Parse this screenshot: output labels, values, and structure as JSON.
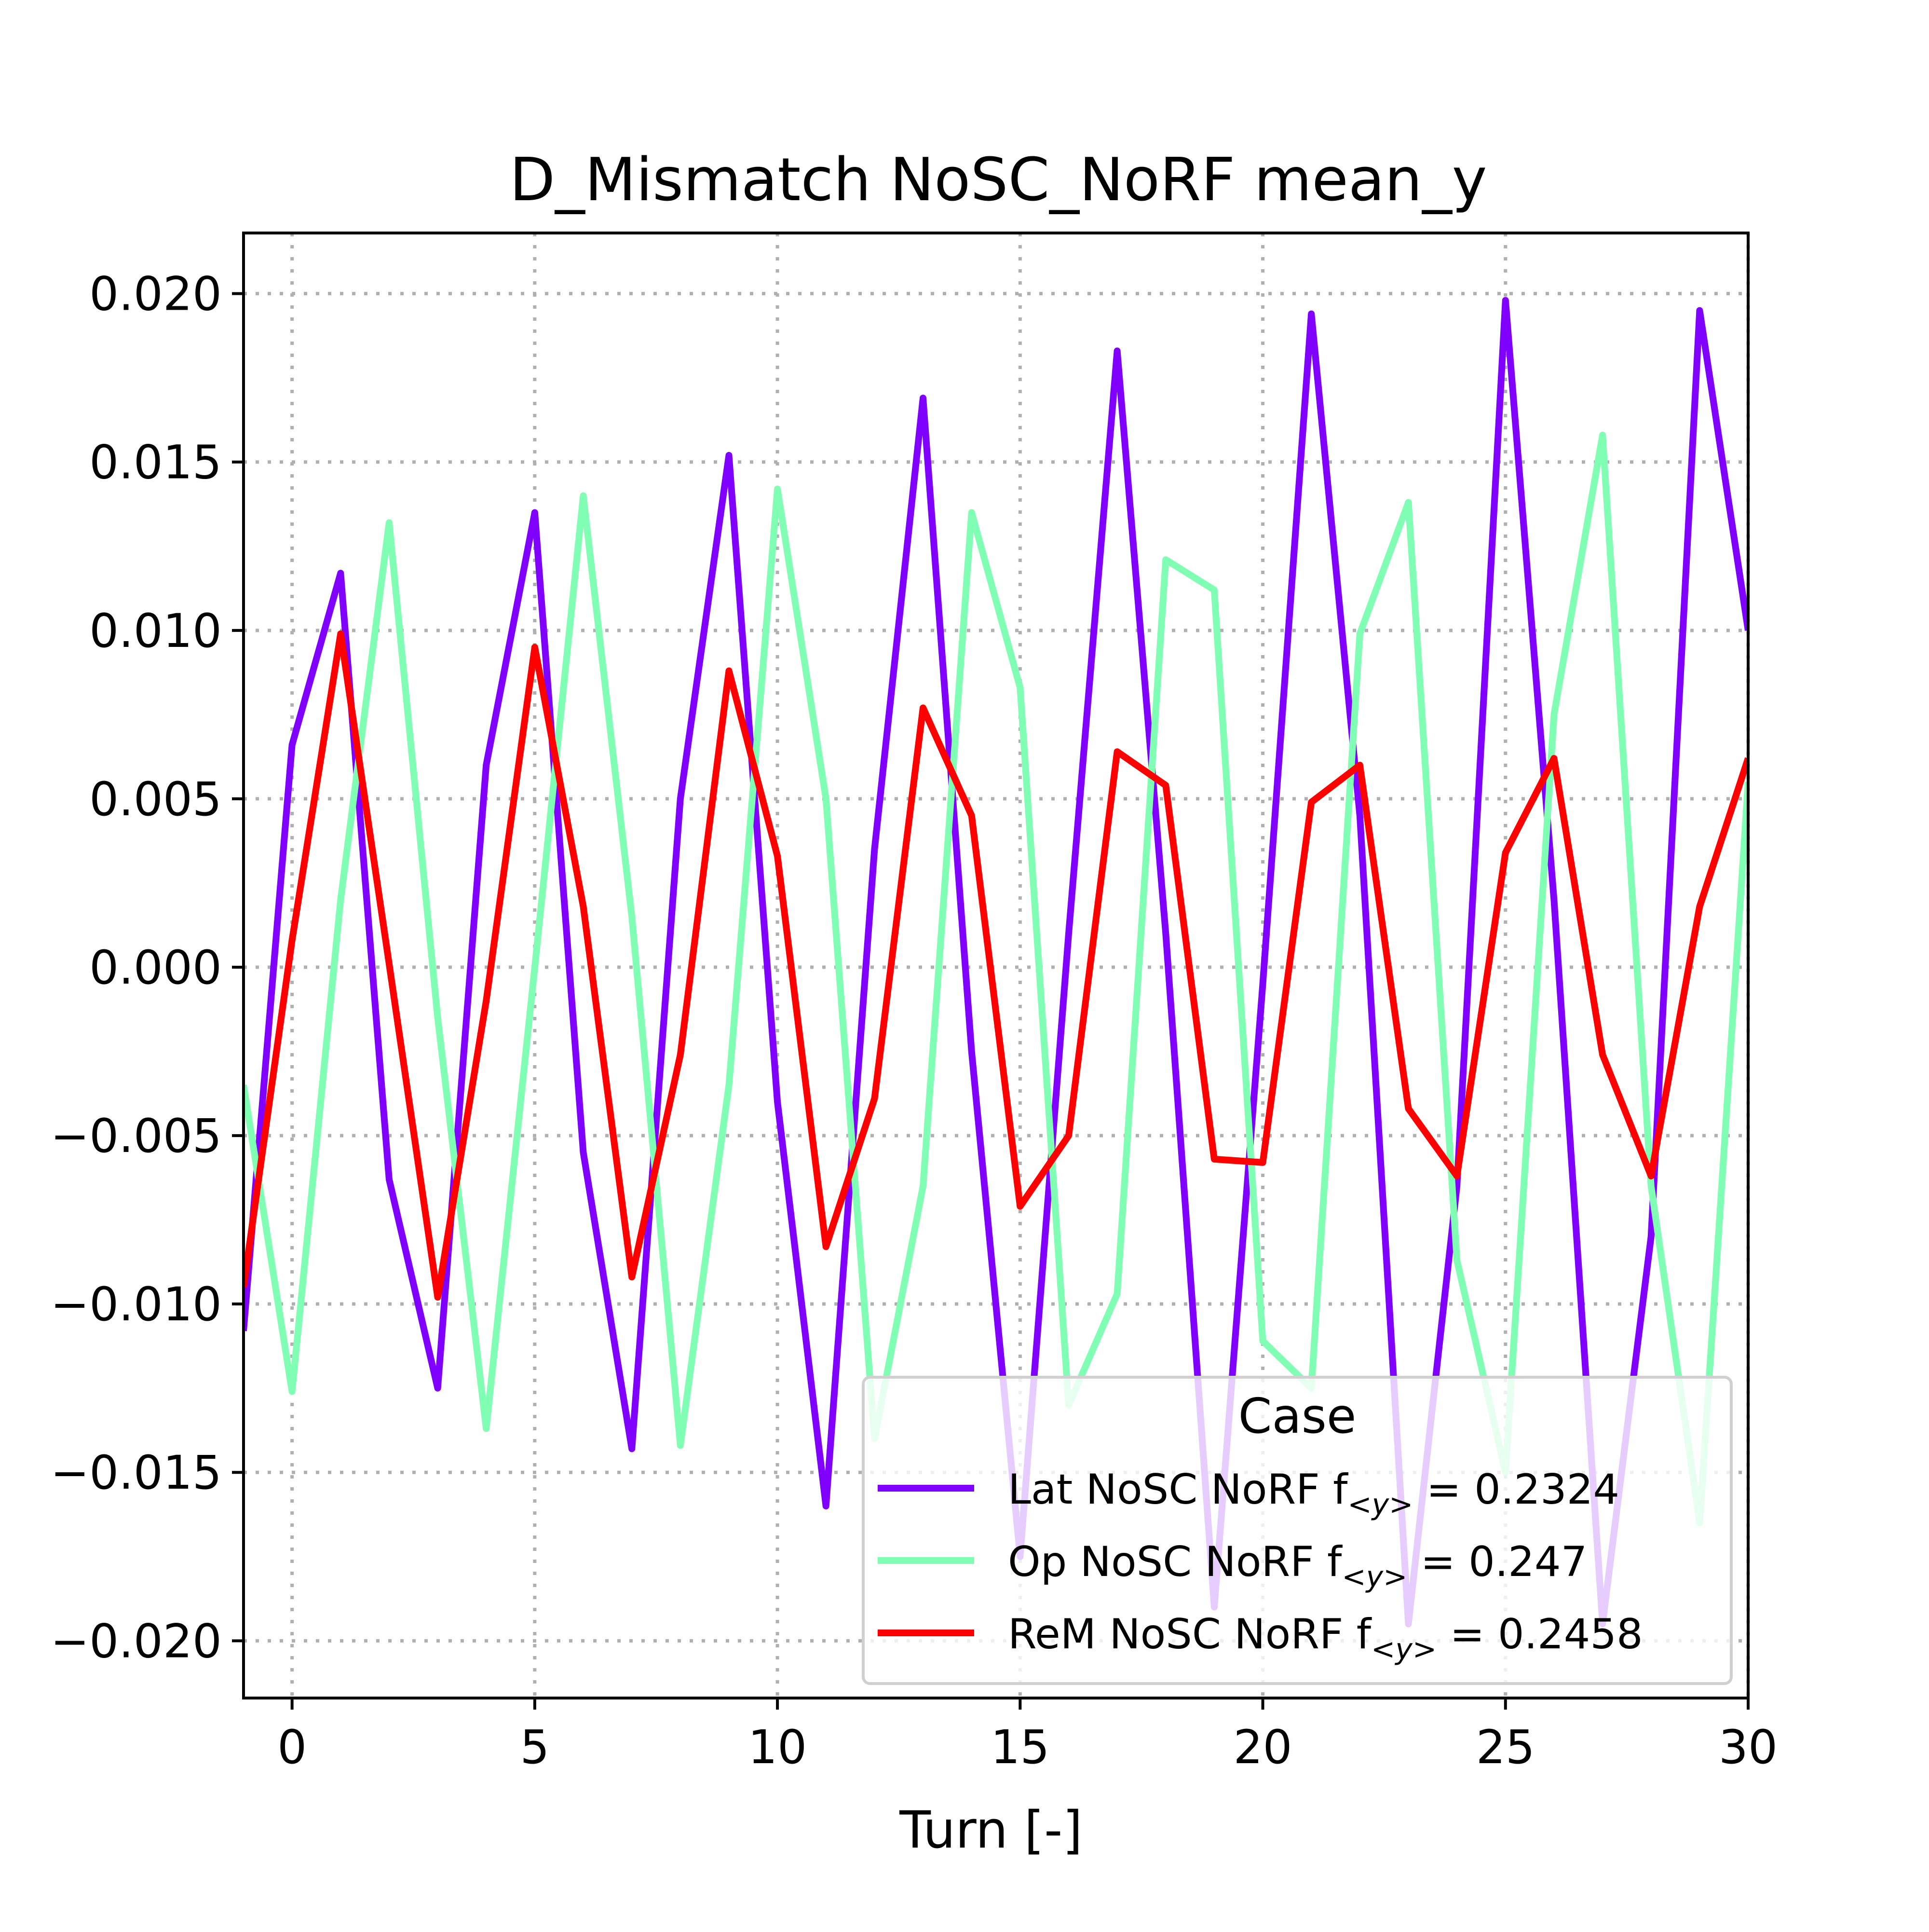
{
  "chart_data": {
    "type": "line",
    "title": "D_Mismatch NoSC_NoRF mean_y",
    "xlabel": "Turn [-]",
    "ylabel": "",
    "xlim": [
      -1,
      30
    ],
    "ylim": [
      -0.0217,
      0.0218
    ],
    "xticks": [
      0,
      5,
      10,
      15,
      20,
      25,
      30
    ],
    "xtick_labels": [
      "0",
      "5",
      "10",
      "15",
      "20",
      "25",
      "30"
    ],
    "yticks": [
      0.02,
      0.015,
      0.01,
      0.005,
      0.0,
      -0.005,
      -0.01,
      -0.015,
      -0.02
    ],
    "ytick_labels": [
      "0.020",
      "0.015",
      "0.010",
      "0.005",
      "0.000",
      "−0.005",
      "−0.010",
      "−0.015",
      "−0.020"
    ],
    "grid": true,
    "legend": {
      "title": "Case",
      "position": "lower-right"
    },
    "series": [
      {
        "name": "Lat NoSC NoRF f<y> = 0.2324",
        "label_prefix": "Lat NoSC NoRF f",
        "label_sub": "<y>",
        "label_suffix": " = 0.2324",
        "color": "#8000ff",
        "x": [
          -1,
          0,
          1,
          2,
          3,
          4,
          5,
          6,
          7,
          8,
          9,
          10,
          11,
          12,
          13,
          14,
          15,
          16,
          17,
          18,
          19,
          20,
          21,
          22,
          23,
          24,
          25,
          26,
          27,
          28,
          29,
          30
        ],
        "y": [
          -0.0108,
          0.0066,
          0.0117,
          -0.0063,
          -0.0125,
          0.006,
          0.0135,
          -0.0055,
          -0.0143,
          0.005,
          0.0152,
          -0.004,
          -0.016,
          0.0035,
          0.0169,
          -0.0025,
          -0.0175,
          0.001,
          0.0183,
          0.001,
          -0.019,
          -0.0005,
          0.0194,
          0.0045,
          -0.0195,
          -0.0065,
          0.0198,
          0.002,
          -0.0195,
          -0.008,
          0.0195,
          0.01
        ]
      },
      {
        "name": "Op NoSC NoRF f<y> = 0.247",
        "label_prefix": "Op NoSC NoRF f",
        "label_sub": "<y>",
        "label_suffix": " = 0.247",
        "color": "#80ffb4",
        "x": [
          -1,
          0,
          1,
          2,
          3,
          4,
          5,
          6,
          7,
          8,
          9,
          10,
          11,
          12,
          13,
          14,
          15,
          16,
          17,
          18,
          19,
          20,
          21,
          22,
          23,
          24,
          25,
          26,
          27,
          28,
          29,
          30
        ],
        "y": [
          -0.0035,
          -0.0126,
          0.002,
          0.0132,
          -0.0015,
          -0.0137,
          0.0,
          0.014,
          0.0015,
          -0.0142,
          -0.0035,
          0.0142,
          0.005,
          -0.014,
          -0.0065,
          0.0135,
          0.0083,
          -0.013,
          -0.0097,
          0.0121,
          0.0112,
          -0.0111,
          -0.0125,
          0.0099,
          0.0138,
          -0.0087,
          -0.015,
          0.0075,
          0.0158,
          -0.0065,
          -0.0165,
          0.0055
        ]
      },
      {
        "name": "ReM NoSC NoRF f<y> = 0.2458",
        "label_prefix": "ReM NoSC NoRF f",
        "label_sub": "<y>",
        "label_suffix": " = 0.2458",
        "color": "#ff0000",
        "x": [
          -1,
          0,
          1,
          2,
          3,
          4,
          5,
          6,
          7,
          8,
          9,
          10,
          11,
          12,
          13,
          14,
          15,
          16,
          17,
          18,
          19,
          20,
          21,
          22,
          23,
          24,
          25,
          26,
          27,
          28,
          29,
          30
        ],
        "y": [
          -0.0095,
          0.0008,
          0.0099,
          0.0001,
          -0.0098,
          -0.001,
          0.0095,
          0.0018,
          -0.0092,
          -0.0026,
          0.0088,
          0.0033,
          -0.0083,
          -0.0039,
          0.0077,
          0.0045,
          -0.0071,
          -0.005,
          0.0064,
          0.0054,
          -0.0057,
          -0.0058,
          0.0049,
          0.006,
          -0.0042,
          -0.0062,
          0.0034,
          0.0062,
          -0.0026,
          -0.0062,
          0.0018,
          0.0062
        ]
      }
    ]
  }
}
